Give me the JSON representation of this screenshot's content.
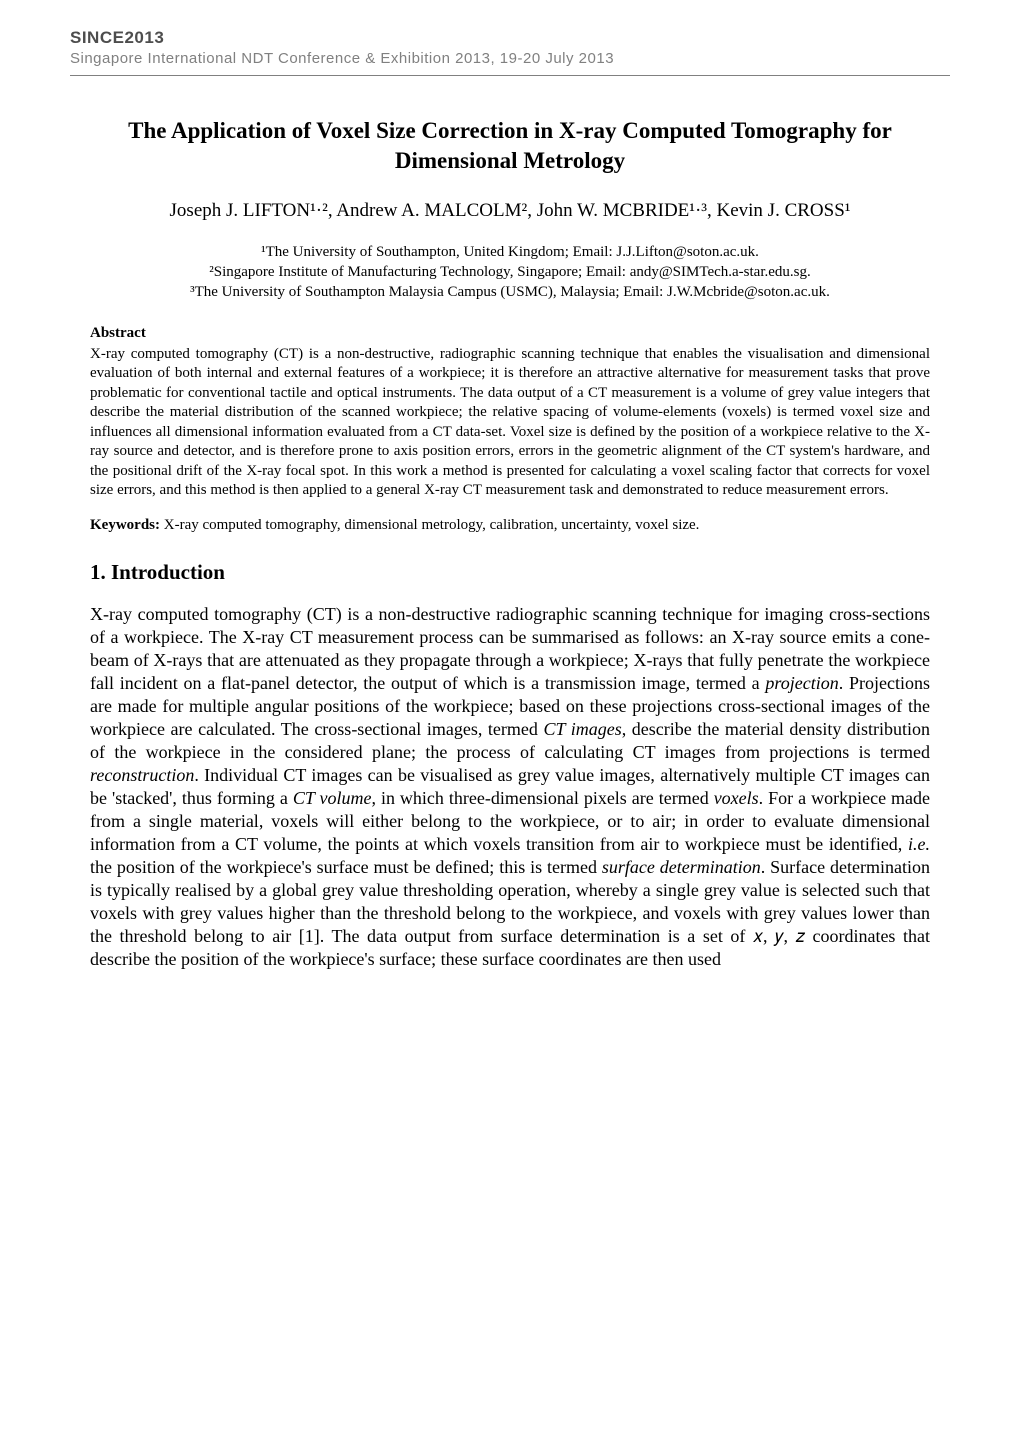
{
  "header": {
    "code": "SINCE2013",
    "subtitle": "Singapore International NDT Conference & Exhibition 2013, 19-20 July 2013"
  },
  "paper": {
    "title": "The Application of Voxel Size Correction in X-ray Computed Tomography for Dimensional Metrology",
    "authors": "Joseph J. LIFTON¹·², Andrew A. MALCOLM², John W. MCBRIDE¹·³, Kevin J. CROSS¹",
    "affiliations": {
      "aff1": "¹The University of Southampton, United Kingdom; Email: J.J.Lifton@soton.ac.uk.",
      "aff2": "²Singapore Institute of Manufacturing Technology, Singapore; Email: andy@SIMTech.a-star.edu.sg.",
      "aff3": "³The University of Southampton Malaysia Campus (USMC), Malaysia; Email: J.W.Mcbride@soton.ac.uk."
    },
    "abstract": {
      "heading": "Abstract",
      "text": "X-ray computed tomography (CT) is a non-destructive, radiographic scanning technique that enables the visualisation and dimensional evaluation of both internal and external features of a workpiece; it is therefore an attractive alternative for measurement tasks that prove problematic for conventional tactile and optical instruments. The data output of a CT measurement is a volume of grey value integers that describe the material distribution of the scanned workpiece; the relative spacing of volume-elements (voxels) is termed voxel size and influences all dimensional information evaluated from a CT data-set. Voxel size is defined by the position of a workpiece relative to the X-ray source and detector, and is therefore prone to axis position errors, errors in the geometric alignment of the CT system's hardware, and the positional drift of the X-ray focal spot. In this work a method is presented for calculating a voxel scaling factor that corrects for voxel size errors, and this method is then applied to a general X-ray CT measurement task and demonstrated to reduce measurement errors."
    },
    "keywords": {
      "label": "Keywords:",
      "text": " X-ray computed tomography, dimensional metrology, calibration, uncertainty, voxel size."
    },
    "section1": {
      "heading": "1. Introduction",
      "body_parts": {
        "p1": "X-ray computed tomography (CT) is a non-destructive radiographic scanning technique for imaging cross-sections of a workpiece. The X-ray CT measurement process can be summarised as follows: an X-ray source emits a cone-beam of X-rays that are attenuated as they propagate through a workpiece; X-rays that fully penetrate the workpiece fall incident on a flat-panel detector, the output of which is a transmission image, termed a ",
        "i1": "projection",
        "p2": ". Projections are made for multiple angular positions of the workpiece; based on these projections cross-sectional images of the workpiece are calculated. The cross-sectional images, termed ",
        "i2": "CT images",
        "p3": ", describe the material density distribution of the workpiece in the considered plane; the process of calculating CT images from projections is termed ",
        "i3": "reconstruction",
        "p4": ". Individual CT images can be visualised as grey value images, alternatively multiple CT images can be 'stacked', thus forming a ",
        "i4": "CT volume",
        "p5": ", in which three-dimensional pixels are termed ",
        "i5": "voxels",
        "p6": ". For a workpiece made from a single material, voxels will either belong to the workpiece, or to air; in order to evaluate dimensional information from a CT volume, the points at which voxels transition from air to workpiece must be identified, ",
        "i6": "i.e.",
        "p7": " the position of the workpiece's surface must be defined; this is termed ",
        "i7": "surface determination",
        "p8": ". Surface determination is typically realised by a global grey value thresholding operation, whereby a single grey value is selected such that voxels with grey values higher than the threshold belong to the workpiece, and voxels with grey values lower than the threshold belong to air [1]. The data output from surface determination is a set of 𝑥, 𝑦, 𝑧 coordinates that describe the position of the workpiece's surface; these surface coordinates are then used"
      }
    }
  }
}
